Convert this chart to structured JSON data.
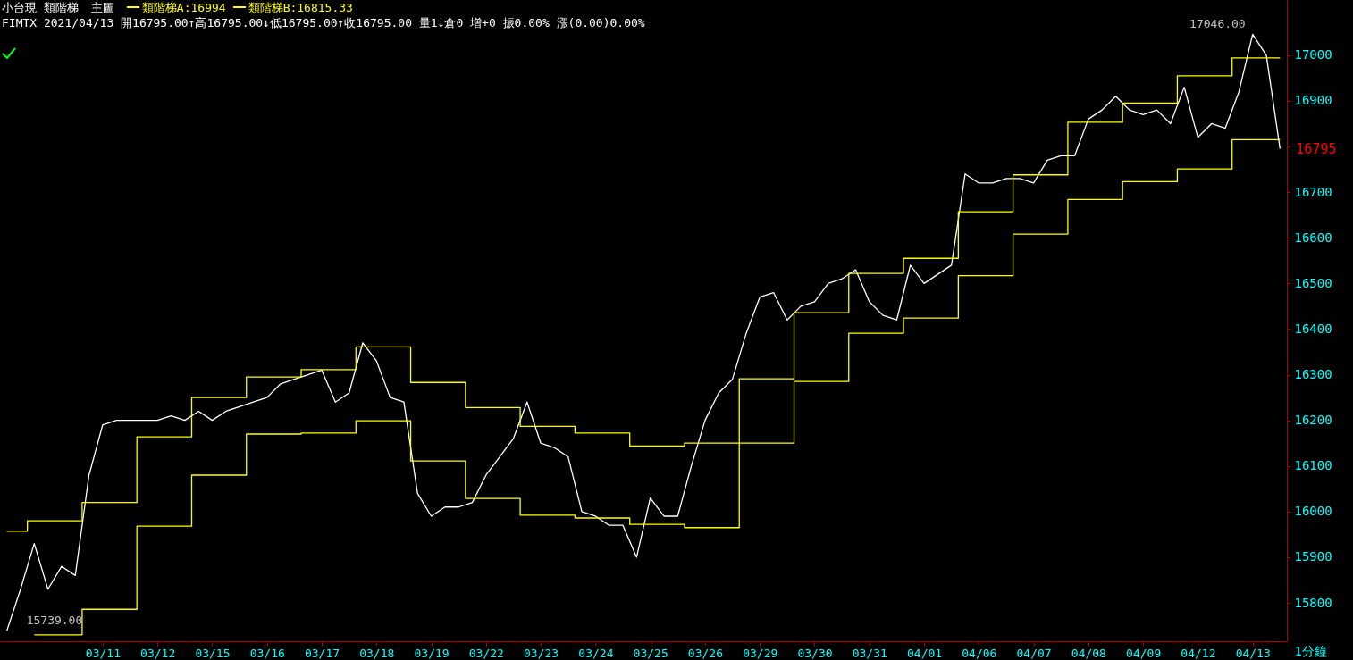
{
  "chart_data": {
    "type": "line",
    "title": "小台現 類階梯",
    "subtitle": "FIMTX 2021/04/13 開16795.00↑高16795.00↓低16795.00↑收16795.00 量1↓倉0 增+0 振0.00% 漲(0.00)0.00%",
    "categories": [
      null,
      null,
      null,
      null,
      null,
      null,
      null,
      "03/11",
      null,
      null,
      null,
      "03/12",
      null,
      null,
      null,
      "03/15",
      null,
      null,
      null,
      "03/16",
      null,
      null,
      null,
      "03/17",
      null,
      null,
      null,
      "03/18",
      null,
      null,
      null,
      "03/19",
      null,
      null,
      null,
      "03/22",
      null,
      null,
      null,
      "03/23",
      null,
      null,
      null,
      "03/24",
      null,
      null,
      null,
      "03/25",
      null,
      null,
      null,
      "03/26",
      null,
      null,
      null,
      "03/29",
      null,
      null,
      null,
      "03/30",
      null,
      null,
      null,
      "03/31",
      null,
      null,
      null,
      "04/01",
      null,
      null,
      null,
      "04/06",
      null,
      null,
      null,
      "04/07",
      null,
      null,
      null,
      "04/08",
      null,
      null,
      null,
      "04/09",
      null,
      null,
      null,
      "04/12",
      null,
      null,
      null,
      "04/13",
      null,
      null
    ],
    "series": [
      {
        "type": "line",
        "color": "#ffffff",
        "values": [
          15739,
          15830,
          15930,
          15830,
          15880,
          15860,
          16080,
          16190,
          16200,
          16200,
          16200,
          16200,
          16210,
          16200,
          16220,
          16200,
          16220,
          16230,
          16240,
          16250,
          16280,
          16290,
          16300,
          16310,
          16240,
          16260,
          16370,
          16330,
          16250,
          16240,
          16040,
          15990,
          16010,
          16010,
          16020,
          16080,
          16120,
          16160,
          16240,
          16150,
          16140,
          16120,
          16000,
          15990,
          15970,
          15970,
          15900,
          16030,
          15990,
          15990,
          16100,
          16200,
          16260,
          16290,
          16390,
          16470,
          16480,
          16420,
          16450,
          16460,
          16500,
          16510,
          16530,
          16460,
          16430,
          16420,
          16540,
          16500,
          16520,
          16540,
          16740,
          16720,
          16720,
          16730,
          16730,
          16720,
          16770,
          16780,
          16780,
          16860,
          16880,
          16910,
          16880,
          16870,
          16880,
          16850,
          16930,
          16820,
          16850,
          16840,
          16920,
          17046,
          17000,
          16795
        ],
        "value_labels": [
          null,
          null,
          null,
          null,
          null,
          null,
          null,
          null,
          null,
          null,
          null,
          null,
          null,
          null,
          null,
          null,
          null,
          null,
          null,
          null,
          null,
          null,
          null,
          null,
          null,
          null,
          null,
          null,
          null,
          null,
          null,
          null,
          null,
          null,
          null,
          null,
          null,
          null,
          null,
          null,
          null,
          null,
          null,
          null,
          null,
          null,
          null,
          null,
          null,
          null,
          null,
          null,
          null,
          null,
          null,
          null,
          null,
          null,
          null,
          null,
          null,
          null,
          null,
          null,
          null,
          null,
          null,
          null,
          null,
          null,
          null,
          null,
          null,
          null,
          null,
          null,
          null,
          null,
          null,
          null,
          null,
          null,
          null,
          null,
          null,
          null,
          null,
          null,
          null,
          null,
          null,
          null,
          null,
          "16795"
        ]
      },
      {
        "type": "step",
        "name": "類階梯A:16994",
        "color": "#ffff00",
        "values": [
          15957,
          15957,
          15980,
          15980,
          15980,
          15980,
          16020,
          16020,
          16020,
          16020,
          16164,
          16164,
          16164,
          16164,
          16250,
          16250,
          16250,
          16250,
          16295,
          16295,
          16295,
          16295,
          16311,
          16311,
          16311,
          16311,
          16361,
          16361,
          16361,
          16361,
          16283,
          16283,
          16283,
          16283,
          16228,
          16228,
          16228,
          16228,
          16187,
          16187,
          16187,
          16187,
          16172,
          16172,
          16172,
          16172,
          16144,
          16144,
          16144,
          16144,
          16150,
          16150,
          16150,
          16150,
          16291,
          16291,
          16291,
          16291,
          16436,
          16436,
          16436,
          16436,
          16522,
          16522,
          16522,
          16522,
          16555,
          16555,
          16555,
          16555,
          16657,
          16657,
          16657,
          16657,
          16738,
          16738,
          16738,
          16738,
          16853,
          16853,
          16853,
          16853,
          16895,
          16895,
          16895,
          16895,
          16955,
          16955,
          16955,
          16955,
          16994,
          16994,
          16994,
          16994
        ]
      },
      {
        "type": "step",
        "name": "類階梯B:16815.33",
        "color": "#ffff00",
        "values": [
          null,
          null,
          15730,
          15730,
          15730,
          15730,
          15786,
          15786,
          15786,
          15786,
          15968,
          15968,
          15968,
          15968,
          16080,
          16080,
          16080,
          16080,
          16170,
          16170,
          16170,
          16170,
          16172,
          16172,
          16172,
          16172,
          16199,
          16199,
          16199,
          16199,
          16111,
          16111,
          16111,
          16111,
          16029,
          16029,
          16029,
          16029,
          15992,
          15992,
          15992,
          15992,
          15986,
          15986,
          15986,
          15986,
          15972,
          15972,
          15972,
          15972,
          15965,
          15965,
          15965,
          15965,
          16150,
          16150,
          16150,
          16150,
          16285,
          16285,
          16285,
          16285,
          16391,
          16391,
          16391,
          16391,
          16424,
          16424,
          16424,
          16424,
          16517,
          16517,
          16517,
          16517,
          16608,
          16608,
          16608,
          16608,
          16684,
          16684,
          16684,
          16684,
          16723,
          16723,
          16723,
          16723,
          16751,
          16751,
          16751,
          16751,
          16815,
          16815,
          16815,
          16815
        ]
      }
    ],
    "ylim": [
      15716,
      17121
    ],
    "yticks": [
      15800,
      15900,
      16000,
      16100,
      16200,
      16300,
      16400,
      16500,
      16600,
      16700,
      {
        "value": 16800,
        "label": null
      },
      16900,
      17000
    ],
    "legend": "top left",
    "xlabel": "1分鐘",
    "annotations": [
      "主圖",
      {
        "text": "17046.00",
        "x": "04/13",
        "y": 17046
      },
      {
        "text": "15739.00",
        "y": 15739
      }
    ]
  }
}
